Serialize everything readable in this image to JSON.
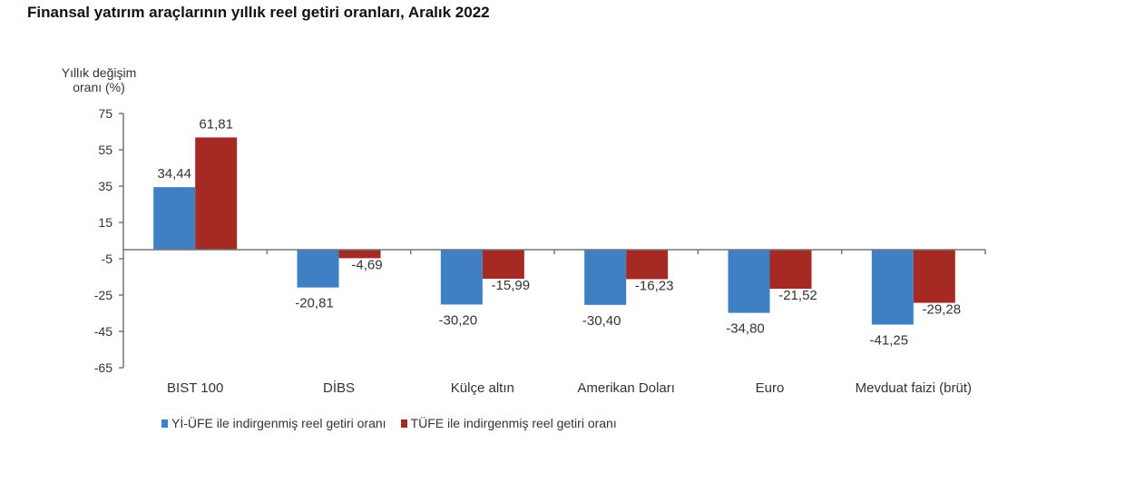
{
  "title": "Finansal yatırım araçlarının yıllık reel getiri oranları, Aralık 2022",
  "chart_data": {
    "type": "bar",
    "title": "Finansal yatırım araçlarının yıllık reel getiri oranları, Aralık 2022",
    "ylabel": "Yıllık değişim oranı (%)",
    "xlabel": "",
    "ylim": [
      -65,
      75
    ],
    "yticks": [
      75,
      55,
      35,
      15,
      -5,
      -25,
      -45,
      -65
    ],
    "grid": false,
    "legend_position": "bottom",
    "categories": [
      "BIST 100",
      "DİBS",
      "Külçe altın",
      "Amerikan Doları",
      "Euro",
      "Mevduat faizi (brüt)"
    ],
    "series": [
      {
        "name": "Yİ-ÜFE ile indirgenmiş reel getiri oranı",
        "color": "#3f7fc4",
        "values": [
          34.44,
          -20.81,
          -30.2,
          -30.4,
          -34.8,
          -41.25
        ],
        "labels": [
          "34,44",
          "-20,81",
          "-30,20",
          "-30,40",
          "-34,80",
          "-41,25"
        ]
      },
      {
        "name": "TÜFE ile indirgenmiş reel getiri oranı",
        "color": "#a52a24",
        "values": [
          61.81,
          -4.69,
          -15.99,
          -16.23,
          -21.52,
          -29.28
        ],
        "labels": [
          "61,81",
          "-4,69",
          "-15,99",
          "-16,23",
          "-21,52",
          "-29,28"
        ]
      }
    ]
  },
  "axis": {
    "ylabel_line1": "Yıllık değişim",
    "ylabel_line2": "oranı (%)"
  },
  "legend": [
    {
      "label": "Yİ-ÜFE ile indirgenmiş reel getiri oranı",
      "color": "#3f7fc4"
    },
    {
      "label": "TÜFE ile indirgenmiş reel getiri oranı",
      "color": "#a52a24"
    }
  ]
}
